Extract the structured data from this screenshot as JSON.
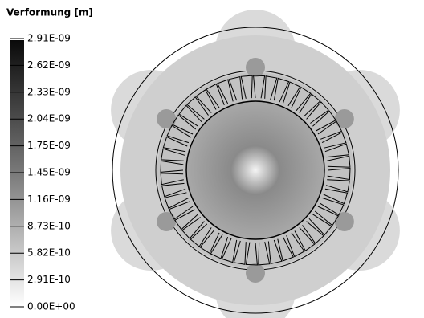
{
  "legend": {
    "title": "Verformung [m]",
    "labels": [
      "2.91E-09",
      "2.62E-09",
      "2.33E-09",
      "2.04E-09",
      "1.75E-09",
      "1.45E-09",
      "1.16E-09",
      "8.73E-10",
      "5.82E-10",
      "2.91E-10",
      "0.00E+00"
    ]
  }
}
